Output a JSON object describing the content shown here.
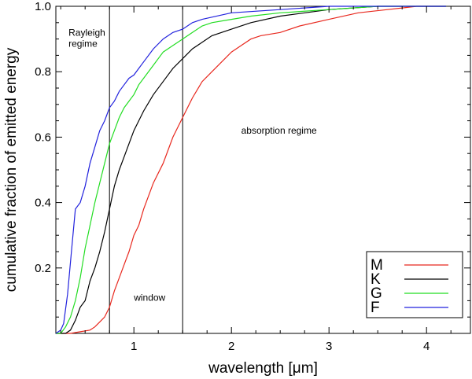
{
  "chart_data": {
    "type": "line",
    "title": "",
    "xlabel": "wavelength [μm]",
    "ylabel": "cumulative fraction of emitted energy",
    "xlim": [
      0.2,
      4.45
    ],
    "ylim": [
      0.0,
      1.0
    ],
    "x_ticks": [
      1,
      2,
      3,
      4
    ],
    "x_tick_labels": [
      "1",
      "2",
      "3",
      "4"
    ],
    "y_ticks": [
      0.2,
      0.4,
      0.6,
      0.8,
      1.0
    ],
    "y_tick_labels": [
      "0.2",
      "0.4",
      "0.6",
      "0.8",
      "1.0"
    ],
    "vertical_lines": [
      0.75,
      1.5
    ],
    "annotations": [
      {
        "lines": [
          "Rayleigh",
          "regime"
        ],
        "x": 0.33,
        "y": 0.91
      },
      {
        "lines": [
          "window"
        ],
        "x": 1.0,
        "y": 0.1
      },
      {
        "lines": [
          "absorption regime"
        ],
        "x": 2.1,
        "y": 0.61
      }
    ],
    "legend": {
      "placement": "bottom-right"
    },
    "series": [
      {
        "name": "M",
        "color": "#e8281e",
        "points": [
          [
            0.2,
            0.0
          ],
          [
            0.35,
            0.0
          ],
          [
            0.45,
            0.005
          ],
          [
            0.55,
            0.01
          ],
          [
            0.6,
            0.02
          ],
          [
            0.65,
            0.035
          ],
          [
            0.7,
            0.05
          ],
          [
            0.75,
            0.08
          ],
          [
            0.8,
            0.13
          ],
          [
            0.85,
            0.17
          ],
          [
            0.9,
            0.21
          ],
          [
            0.95,
            0.25
          ],
          [
            1.0,
            0.3
          ],
          [
            1.05,
            0.33
          ],
          [
            1.1,
            0.38
          ],
          [
            1.2,
            0.46
          ],
          [
            1.3,
            0.52
          ],
          [
            1.4,
            0.6
          ],
          [
            1.5,
            0.66
          ],
          [
            1.6,
            0.72
          ],
          [
            1.7,
            0.77
          ],
          [
            1.8,
            0.8
          ],
          [
            1.9,
            0.83
          ],
          [
            2.0,
            0.86
          ],
          [
            2.1,
            0.88
          ],
          [
            2.2,
            0.9
          ],
          [
            2.3,
            0.91
          ],
          [
            2.5,
            0.92
          ],
          [
            2.7,
            0.94
          ],
          [
            3.0,
            0.96
          ],
          [
            3.3,
            0.98
          ],
          [
            3.6,
            0.99
          ],
          [
            3.9,
            1.0
          ],
          [
            4.2,
            1.0
          ]
        ]
      },
      {
        "name": "K",
        "color": "#000000",
        "points": [
          [
            0.2,
            0.0
          ],
          [
            0.3,
            0.0
          ],
          [
            0.35,
            0.01
          ],
          [
            0.4,
            0.04
          ],
          [
            0.45,
            0.08
          ],
          [
            0.5,
            0.1
          ],
          [
            0.55,
            0.16
          ],
          [
            0.6,
            0.2
          ],
          [
            0.65,
            0.25
          ],
          [
            0.7,
            0.31
          ],
          [
            0.75,
            0.38
          ],
          [
            0.8,
            0.45
          ],
          [
            0.85,
            0.5
          ],
          [
            0.9,
            0.54
          ],
          [
            0.95,
            0.58
          ],
          [
            1.0,
            0.62
          ],
          [
            1.05,
            0.65
          ],
          [
            1.1,
            0.68
          ],
          [
            1.2,
            0.73
          ],
          [
            1.3,
            0.77
          ],
          [
            1.4,
            0.81
          ],
          [
            1.5,
            0.84
          ],
          [
            1.6,
            0.87
          ],
          [
            1.7,
            0.89
          ],
          [
            1.8,
            0.91
          ],
          [
            2.0,
            0.93
          ],
          [
            2.2,
            0.95
          ],
          [
            2.5,
            0.97
          ],
          [
            3.0,
            0.99
          ],
          [
            3.5,
            1.0
          ],
          [
            4.2,
            1.0
          ]
        ]
      },
      {
        "name": "G",
        "color": "#22dd22",
        "points": [
          [
            0.2,
            0.0
          ],
          [
            0.25,
            0.0
          ],
          [
            0.3,
            0.02
          ],
          [
            0.35,
            0.05
          ],
          [
            0.4,
            0.1
          ],
          [
            0.45,
            0.17
          ],
          [
            0.5,
            0.26
          ],
          [
            0.55,
            0.33
          ],
          [
            0.6,
            0.4
          ],
          [
            0.65,
            0.46
          ],
          [
            0.7,
            0.52
          ],
          [
            0.75,
            0.58
          ],
          [
            0.8,
            0.62
          ],
          [
            0.85,
            0.66
          ],
          [
            0.9,
            0.69
          ],
          [
            0.95,
            0.71
          ],
          [
            1.0,
            0.73
          ],
          [
            1.05,
            0.76
          ],
          [
            1.1,
            0.78
          ],
          [
            1.2,
            0.82
          ],
          [
            1.3,
            0.86
          ],
          [
            1.4,
            0.88
          ],
          [
            1.5,
            0.9
          ],
          [
            1.6,
            0.92
          ],
          [
            1.7,
            0.94
          ],
          [
            1.8,
            0.95
          ],
          [
            2.0,
            0.96
          ],
          [
            2.2,
            0.97
          ],
          [
            2.5,
            0.98
          ],
          [
            3.0,
            0.99
          ],
          [
            3.5,
            1.0
          ],
          [
            4.2,
            1.0
          ]
        ]
      },
      {
        "name": "F",
        "color": "#2222dd",
        "points": [
          [
            0.2,
            0.0
          ],
          [
            0.25,
            0.01
          ],
          [
            0.28,
            0.03
          ],
          [
            0.32,
            0.12
          ],
          [
            0.36,
            0.25
          ],
          [
            0.4,
            0.38
          ],
          [
            0.45,
            0.4
          ],
          [
            0.5,
            0.45
          ],
          [
            0.55,
            0.52
          ],
          [
            0.6,
            0.57
          ],
          [
            0.65,
            0.62
          ],
          [
            0.7,
            0.65
          ],
          [
            0.75,
            0.69
          ],
          [
            0.8,
            0.71
          ],
          [
            0.85,
            0.74
          ],
          [
            0.9,
            0.76
          ],
          [
            0.95,
            0.78
          ],
          [
            1.0,
            0.79
          ],
          [
            1.05,
            0.81
          ],
          [
            1.1,
            0.83
          ],
          [
            1.2,
            0.87
          ],
          [
            1.3,
            0.9
          ],
          [
            1.4,
            0.92
          ],
          [
            1.5,
            0.93
          ],
          [
            1.6,
            0.95
          ],
          [
            1.7,
            0.96
          ],
          [
            2.0,
            0.98
          ],
          [
            2.5,
            0.99
          ],
          [
            3.0,
            1.0
          ],
          [
            4.2,
            1.0
          ]
        ]
      }
    ]
  }
}
